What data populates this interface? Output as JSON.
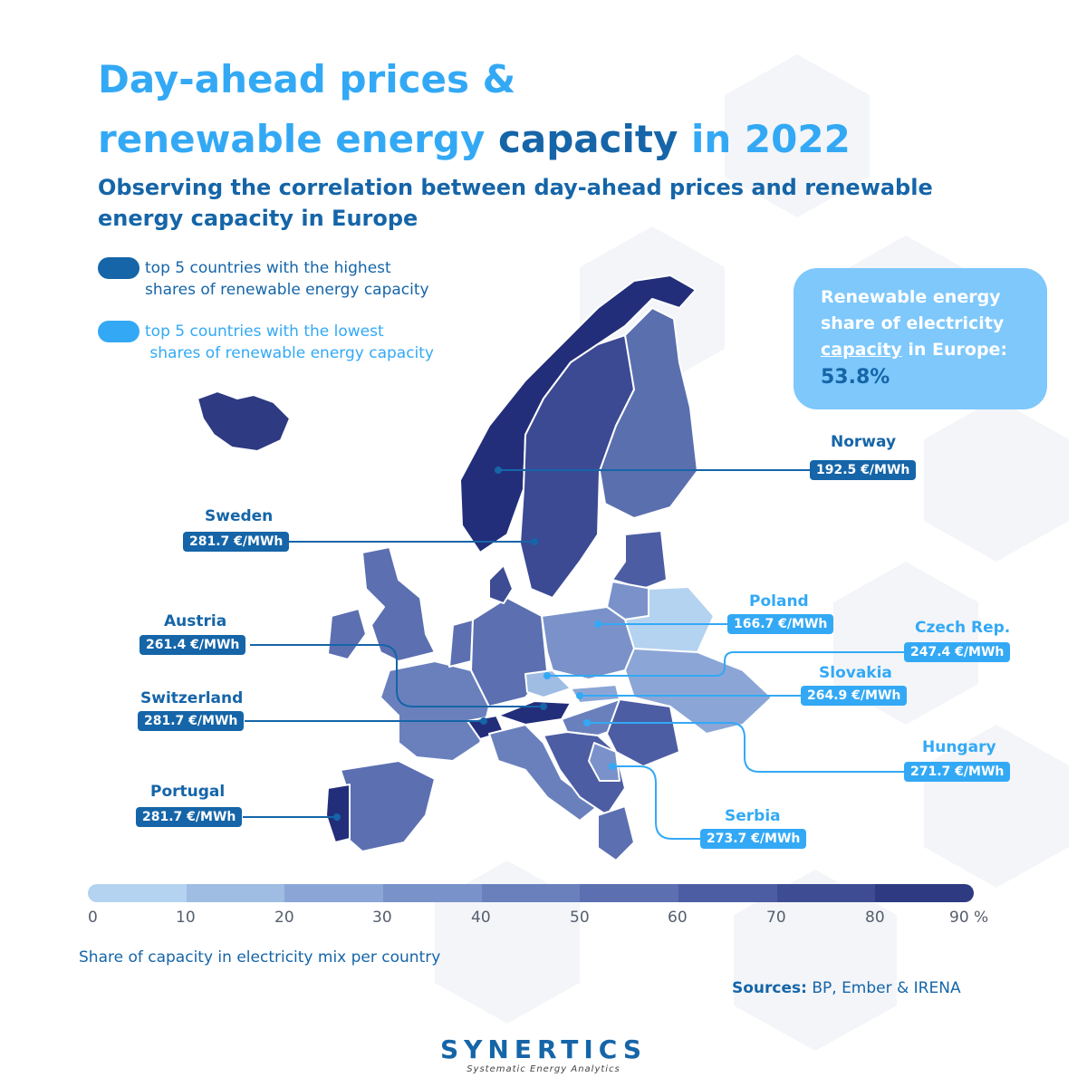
{
  "title": {
    "line1": "Day-ahead prices &",
    "line2_part1": "renewable energy ",
    "line2_part2": "capacity",
    "line2_part3": " in 2022"
  },
  "subtitle": "Observing the correlation between day-ahead prices and renewable energy capacity in Europe",
  "legend": {
    "highest": {
      "line1": "top 5 countries with the highest",
      "line2": "shares of renewable energy capacity",
      "color": "#1565a8"
    },
    "lowest": {
      "line1": "top 5 countries with the lowest",
      "line2": " shares of renewable energy capacity",
      "color": "#33a9f5"
    }
  },
  "callout": {
    "line1": "Renewable energy",
    "line2": "share of electricity",
    "line3_underlined": "capacity",
    "line3_rest": " in Europe:",
    "value": "53.8%"
  },
  "countries": [
    {
      "name": "Norway",
      "price": "192.5 €/MWh",
      "group": "highest"
    },
    {
      "name": "Sweden",
      "price": "281.7 €/MWh",
      "group": "highest"
    },
    {
      "name": "Austria",
      "price": "261.4 €/MWh",
      "group": "highest"
    },
    {
      "name": "Switzerland",
      "price": "281.7 €/MWh",
      "group": "highest"
    },
    {
      "name": "Portugal",
      "price": "281.7 €/MWh",
      "group": "highest"
    },
    {
      "name": "Poland",
      "price": "166.7 €/MWh",
      "group": "lowest"
    },
    {
      "name": "Czech Rep.",
      "price": "247.4 €/MWh",
      "group": "lowest"
    },
    {
      "name": "Slovakia",
      "price": "264.9 €/MWh",
      "group": "lowest"
    },
    {
      "name": "Hungary",
      "price": "271.7 €/MWh",
      "group": "lowest"
    },
    {
      "name": "Serbia",
      "price": "273.7 €/MWh",
      "group": "lowest"
    }
  ],
  "scale": {
    "colors": [
      "#b4d3f0",
      "#9fbce3",
      "#8ba6d6",
      "#7992c9",
      "#6a80bd",
      "#5b6fb1",
      "#4c5da3",
      "#3d4c93",
      "#2e3a82"
    ],
    "ticks": [
      "0",
      "10",
      "20",
      "30",
      "40",
      "50",
      "60",
      "70",
      "80",
      "90"
    ],
    "unit": "%",
    "caption": "Share of capacity in electricity mix per country"
  },
  "sources": {
    "label": "Sources:",
    "text": " BP, Ember & IRENA"
  },
  "logo": {
    "name": "SYNERTICS",
    "tagline": "Systematic Energy Analytics"
  }
}
